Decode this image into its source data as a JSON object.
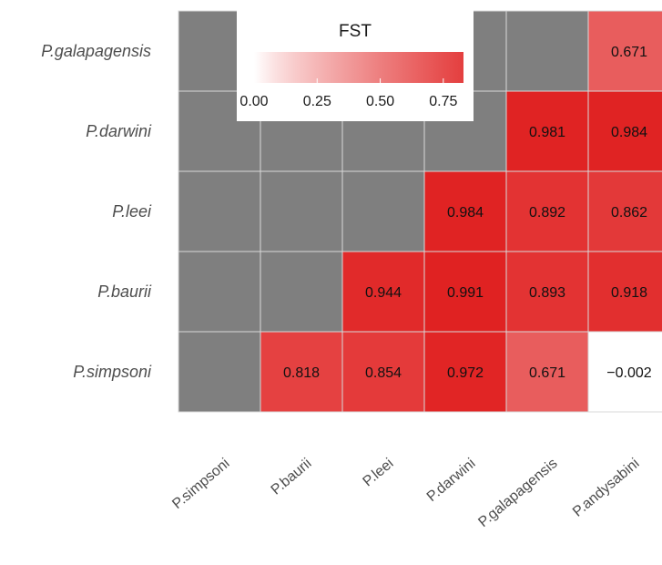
{
  "chart_data": {
    "type": "heatmap",
    "legend": {
      "title": "FST",
      "ticks": [
        "0.00",
        "0.25",
        "0.50",
        "0.75"
      ],
      "tick_values": [
        0,
        0.25,
        0.5,
        0.75
      ],
      "placement": "top-left, inside plot",
      "color_low": "#ffffff",
      "color_high": "#e02020"
    },
    "missing_color": "#7f7f7f",
    "x_categories": [
      "P.simpsoni",
      "P.baurii",
      "P.leei",
      "P.darwini",
      "P.galapagensis",
      "P.andysabini"
    ],
    "y_categories_top_to_bottom": [
      "P.galapagensis",
      "P.darwini",
      "P.leei",
      "P.baurii",
      "P.simpsoni"
    ],
    "rows": [
      [
        null,
        null,
        null,
        null,
        null,
        0.671
      ],
      [
        null,
        null,
        null,
        null,
        0.981,
        0.984
      ],
      [
        null,
        null,
        null,
        0.984,
        0.892,
        0.862
      ],
      [
        null,
        null,
        0.944,
        0.991,
        0.893,
        0.918
      ],
      [
        null,
        0.818,
        0.854,
        0.972,
        0.671,
        -0.002
      ]
    ],
    "labels": [
      [
        null,
        null,
        null,
        null,
        null,
        "0.671"
      ],
      [
        null,
        null,
        null,
        null,
        "0.981",
        "0.984"
      ],
      [
        null,
        null,
        null,
        "0.984",
        "0.892",
        "0.862"
      ],
      [
        null,
        null,
        "0.944",
        "0.991",
        "0.893",
        "0.918"
      ],
      [
        null,
        "0.818",
        "0.854",
        "0.972",
        "0.671",
        "−0.002"
      ]
    ]
  }
}
